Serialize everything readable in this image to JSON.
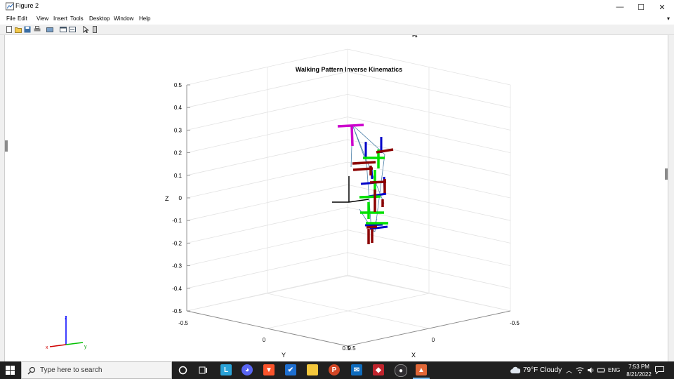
{
  "window": {
    "title": "Figure 2",
    "minimize": "—",
    "maximize": "☐",
    "close": "✕"
  },
  "menu": {
    "items": [
      "File",
      "Edit",
      "View",
      "Insert",
      "Tools",
      "Desktop",
      "Window",
      "Help"
    ],
    "restore_glyph": "▾"
  },
  "toolbar": {
    "icons": [
      "new-figure-icon",
      "open-file-icon",
      "save-icon",
      "print-icon",
      "link-icon",
      "dock-icon",
      "insert-legend-icon",
      "pointer-icon",
      "colorbar-icon"
    ]
  },
  "plot": {
    "title": "Walking Pattern Inverse Kinematics",
    "zlabel": "Z",
    "ylabel": "Y",
    "xlabel": "X",
    "z_ticks": [
      "0.5",
      "0.4",
      "0.3",
      "0.2",
      "0.1",
      "0",
      "-0.1",
      "-0.2",
      "-0.3",
      "-0.4",
      "-0.5"
    ],
    "y_ticks": [
      "-0.5",
      "0",
      "0.5"
    ],
    "x_ticks": [
      "0.5",
      "0",
      "-0.5"
    ],
    "triad": {
      "x": "x",
      "y": "y",
      "z": "z"
    },
    "colors": {
      "base": "#000000",
      "hip": "#cc00cc",
      "link_blue": "#0000c8",
      "link_green": "#00e000",
      "link_red": "#8b0000",
      "thin": "#4a7fa8"
    }
  },
  "taskbar": {
    "search_placeholder": "Type here to search",
    "apps": [
      "task-view",
      "widgets",
      "lens",
      "discord",
      "brave",
      "sourcetree",
      "file-explorer",
      "powerpoint",
      "mail",
      "app-red",
      "obs",
      "matlab"
    ],
    "weather": "79°F  Cloudy",
    "language": "ENG",
    "time": "7:53 PM",
    "date": "8/21/2022"
  }
}
